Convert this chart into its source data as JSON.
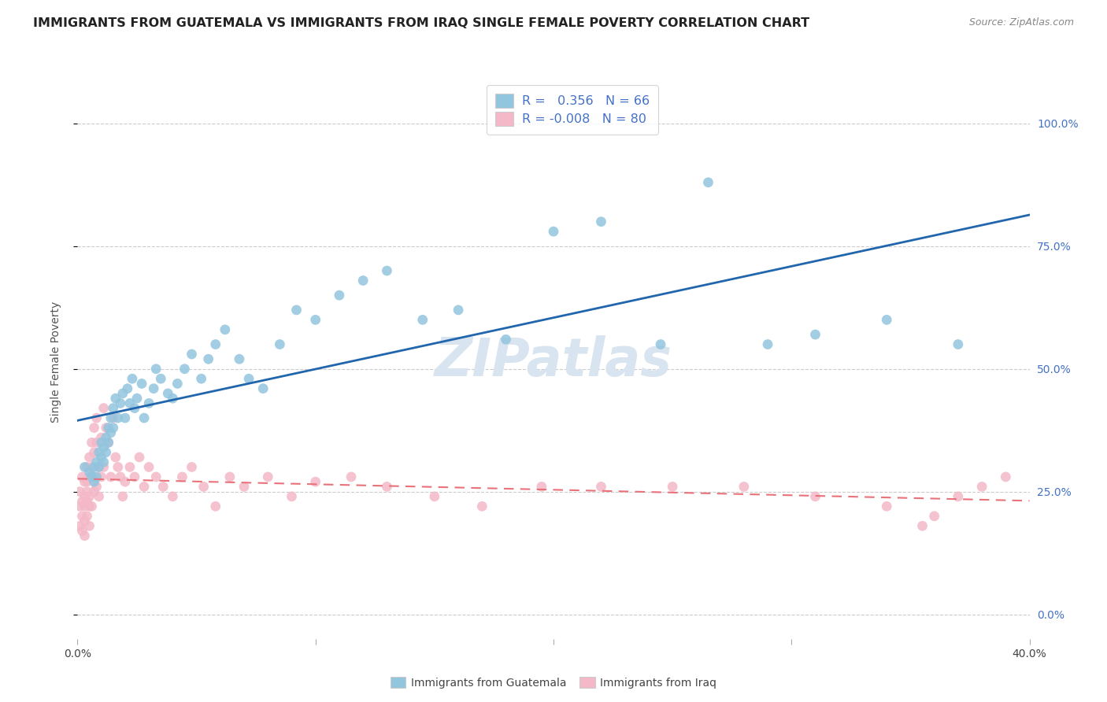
{
  "title": "IMMIGRANTS FROM GUATEMALA VS IMMIGRANTS FROM IRAQ SINGLE FEMALE POVERTY CORRELATION CHART",
  "source": "Source: ZipAtlas.com",
  "ylabel": "Single Female Poverty",
  "xlim": [
    0.0,
    0.4
  ],
  "ylim": [
    0.0,
    1.05
  ],
  "watermark": "ZIPatlas",
  "blue_color": "#92c5de",
  "pink_color": "#f4b8c8",
  "line_blue": "#2166ac",
  "line_pink": "#e8727a",
  "guatemala_x": [
    0.003,
    0.005,
    0.006,
    0.007,
    0.007,
    0.008,
    0.008,
    0.009,
    0.009,
    0.01,
    0.01,
    0.011,
    0.011,
    0.012,
    0.012,
    0.013,
    0.013,
    0.014,
    0.014,
    0.015,
    0.015,
    0.016,
    0.017,
    0.018,
    0.019,
    0.02,
    0.021,
    0.022,
    0.023,
    0.024,
    0.025,
    0.027,
    0.028,
    0.03,
    0.032,
    0.033,
    0.035,
    0.038,
    0.04,
    0.042,
    0.045,
    0.048,
    0.052,
    0.055,
    0.058,
    0.062,
    0.068,
    0.072,
    0.078,
    0.085,
    0.092,
    0.1,
    0.11,
    0.12,
    0.13,
    0.145,
    0.16,
    0.18,
    0.2,
    0.22,
    0.245,
    0.265,
    0.29,
    0.31,
    0.34,
    0.37
  ],
  "guatemala_y": [
    0.3,
    0.29,
    0.28,
    0.3,
    0.27,
    0.31,
    0.28,
    0.3,
    0.33,
    0.32,
    0.35,
    0.34,
    0.31,
    0.36,
    0.33,
    0.38,
    0.35,
    0.37,
    0.4,
    0.42,
    0.38,
    0.44,
    0.4,
    0.43,
    0.45,
    0.4,
    0.46,
    0.43,
    0.48,
    0.42,
    0.44,
    0.47,
    0.4,
    0.43,
    0.46,
    0.5,
    0.48,
    0.45,
    0.44,
    0.47,
    0.5,
    0.53,
    0.48,
    0.52,
    0.55,
    0.58,
    0.52,
    0.48,
    0.46,
    0.55,
    0.62,
    0.6,
    0.65,
    0.68,
    0.7,
    0.6,
    0.62,
    0.56,
    0.78,
    0.8,
    0.55,
    0.88,
    0.55,
    0.57,
    0.6,
    0.55
  ],
  "iraq_x": [
    0.001,
    0.001,
    0.001,
    0.002,
    0.002,
    0.002,
    0.002,
    0.003,
    0.003,
    0.003,
    0.003,
    0.003,
    0.004,
    0.004,
    0.004,
    0.004,
    0.004,
    0.005,
    0.005,
    0.005,
    0.005,
    0.005,
    0.006,
    0.006,
    0.006,
    0.006,
    0.007,
    0.007,
    0.007,
    0.007,
    0.008,
    0.008,
    0.008,
    0.009,
    0.009,
    0.01,
    0.01,
    0.011,
    0.011,
    0.012,
    0.013,
    0.014,
    0.015,
    0.016,
    0.017,
    0.018,
    0.019,
    0.02,
    0.022,
    0.024,
    0.026,
    0.028,
    0.03,
    0.033,
    0.036,
    0.04,
    0.044,
    0.048,
    0.053,
    0.058,
    0.064,
    0.07,
    0.08,
    0.09,
    0.1,
    0.115,
    0.13,
    0.15,
    0.17,
    0.195,
    0.22,
    0.25,
    0.28,
    0.31,
    0.34,
    0.355,
    0.36,
    0.37,
    0.38,
    0.39
  ],
  "iraq_y": [
    0.22,
    0.18,
    0.25,
    0.2,
    0.23,
    0.17,
    0.28,
    0.24,
    0.19,
    0.27,
    0.22,
    0.16,
    0.25,
    0.3,
    0.2,
    0.23,
    0.27,
    0.28,
    0.22,
    0.18,
    0.32,
    0.24,
    0.35,
    0.28,
    0.22,
    0.3,
    0.33,
    0.25,
    0.38,
    0.28,
    0.4,
    0.35,
    0.26,
    0.3,
    0.24,
    0.36,
    0.28,
    0.42,
    0.3,
    0.38,
    0.35,
    0.28,
    0.4,
    0.32,
    0.3,
    0.28,
    0.24,
    0.27,
    0.3,
    0.28,
    0.32,
    0.26,
    0.3,
    0.28,
    0.26,
    0.24,
    0.28,
    0.3,
    0.26,
    0.22,
    0.28,
    0.26,
    0.28,
    0.24,
    0.27,
    0.28,
    0.26,
    0.24,
    0.22,
    0.26,
    0.26,
    0.26,
    0.26,
    0.24,
    0.22,
    0.18,
    0.2,
    0.24,
    0.26,
    0.28
  ],
  "grid_color": "#cccccc",
  "bg_color": "#ffffff",
  "title_fontsize": 11.5,
  "legend_fontsize": 11,
  "watermark_fontsize": 48,
  "watermark_color": "#d8e4f0",
  "source_fontsize": 9
}
